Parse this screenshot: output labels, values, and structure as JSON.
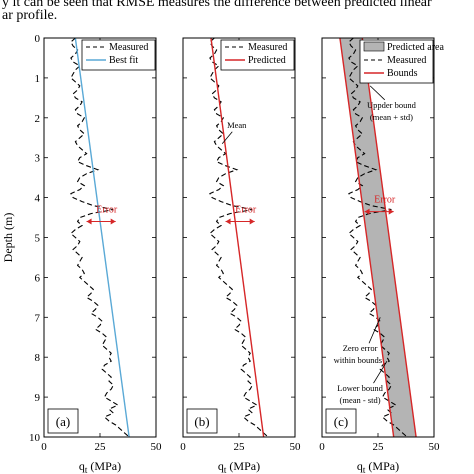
{
  "caption": {
    "line1": "y it can be seen that RMSE measures the difference between predicted linear",
    "line2": "ar profile."
  },
  "colors": {
    "measured": "#000000",
    "best_fit": "#5aa9d6",
    "predicted": "#d62728",
    "bounds": "#d62728",
    "area": "#b4b4b4"
  },
  "chart_data": [
    {
      "type": "line",
      "panel_label": "(a)",
      "xlabel": "q_t (MPa)",
      "ylabel": "Depth (m)",
      "xlim": [
        0,
        50
      ],
      "ylim": [
        10,
        0
      ],
      "xticks": [
        "0",
        "25",
        "50"
      ],
      "yticks": [
        "0",
        "1",
        "2",
        "3",
        "4",
        "5",
        "6",
        "7",
        "8",
        "9",
        "10"
      ],
      "legend": [
        "Measured",
        "Best fit"
      ],
      "legend_position": "top-right",
      "series": [
        {
          "name": "Measured",
          "style": "dashed",
          "ref": "measured"
        },
        {
          "name": "Best fit",
          "style": "solid",
          "x": [
            14,
            38
          ],
          "y": [
            0,
            10
          ]
        }
      ],
      "annotations": [
        {
          "text": "Error",
          "x": 28,
          "y": 4.45
        }
      ]
    },
    {
      "type": "line",
      "panel_label": "(b)",
      "xlabel": "q_t (MPa)",
      "ylabel": "",
      "xlim": [
        0,
        50
      ],
      "ylim": [
        10,
        0
      ],
      "xticks": [
        "0",
        "25",
        "50"
      ],
      "legend": [
        "Measured",
        "Predicted"
      ],
      "legend_position": "top-right",
      "series": [
        {
          "name": "Measured",
          "style": "dashed",
          "ref": "measured"
        },
        {
          "name": "Predicted",
          "style": "solid",
          "x": [
            12.5,
            36
          ],
          "y": [
            0,
            10
          ]
        }
      ],
      "annotations": [
        {
          "text": "Mean",
          "x": 24,
          "y": 2.25
        },
        {
          "text": "Error",
          "x": 28,
          "y": 4.45
        }
      ]
    },
    {
      "type": "area",
      "panel_label": "(c)",
      "xlabel": "q_t (MPa)",
      "ylabel": "",
      "xlim": [
        0,
        50
      ],
      "ylim": [
        10,
        0
      ],
      "xticks": [
        "0",
        "25",
        "50"
      ],
      "legend": [
        "Predicted area",
        "Measured",
        "Bounds"
      ],
      "legend_position": "top-right",
      "series": [
        {
          "name": "Measured",
          "style": "dashed",
          "ref": "measured"
        },
        {
          "name": "Bounds",
          "style": "solid",
          "lower_x": [
            8,
            32
          ],
          "upper_x": [
            18,
            42
          ],
          "y": [
            0,
            10
          ]
        }
      ],
      "annotations": [
        {
          "text": "Uppder bound",
          "x": 31,
          "y": 1.75
        },
        {
          "text": "(mean + std)",
          "x": 31,
          "y": 2.05
        },
        {
          "text": "Error",
          "x": 28,
          "y": 4.2
        },
        {
          "text": "Zero error",
          "x": 17,
          "y": 7.85
        },
        {
          "text": "within bounds",
          "x": 16,
          "y": 8.15
        },
        {
          "text": "Lower bound",
          "x": 17,
          "y": 8.85
        },
        {
          "text": "(mean - std)",
          "x": 17,
          "y": 9.15
        }
      ]
    }
  ],
  "measured_profile": {
    "depth": [
      0.0,
      0.1,
      0.2,
      0.3,
      0.4,
      0.5,
      0.6,
      0.7,
      0.8,
      0.9,
      1.0,
      1.1,
      1.2,
      1.3,
      1.4,
      1.5,
      1.6,
      1.7,
      1.8,
      1.9,
      2.0,
      2.1,
      2.2,
      2.3,
      2.4,
      2.5,
      2.6,
      2.7,
      2.8,
      2.9,
      3.0,
      3.1,
      3.2,
      3.3,
      3.4,
      3.5,
      3.6,
      3.7,
      3.8,
      3.9,
      4.0,
      4.1,
      4.2,
      4.3,
      4.4,
      4.5,
      4.6,
      4.7,
      4.8,
      4.9,
      5.0,
      5.1,
      5.2,
      5.3,
      5.4,
      5.5,
      5.6,
      5.7,
      5.8,
      5.9,
      6.0,
      6.1,
      6.2,
      6.3,
      6.4,
      6.5,
      6.6,
      6.7,
      6.8,
      6.9,
      7.0,
      7.1,
      7.2,
      7.3,
      7.4,
      7.5,
      7.6,
      7.7,
      7.8,
      7.9,
      8.0,
      8.1,
      8.2,
      8.3,
      8.4,
      8.5,
      8.6,
      8.7,
      8.8,
      8.9,
      9.0,
      9.1,
      9.2,
      9.3,
      9.4,
      9.5,
      9.6,
      9.7,
      9.8,
      9.9,
      10.0
    ],
    "qt": [
      14,
      12,
      13,
      15,
      14,
      12,
      13,
      16,
      14,
      13,
      12,
      14,
      16,
      15,
      13,
      14,
      17,
      16,
      14,
      15,
      18,
      17,
      15,
      16,
      18,
      16,
      14,
      15,
      17,
      19,
      16,
      15,
      19,
      24,
      19,
      16,
      15,
      18,
      16,
      12,
      13,
      17,
      22,
      31,
      21,
      16,
      15,
      17,
      14,
      12,
      14,
      16,
      15,
      13,
      15,
      17,
      16,
      15,
      17,
      18,
      16,
      18,
      20,
      22,
      21,
      19,
      22,
      24,
      23,
      21,
      24,
      26,
      25,
      23,
      26,
      28,
      27,
      26,
      28,
      30,
      29,
      30,
      27,
      26,
      28,
      30,
      29,
      31,
      30,
      28,
      27,
      30,
      33,
      29,
      31,
      27,
      29,
      32,
      34,
      36,
      38
    ]
  }
}
